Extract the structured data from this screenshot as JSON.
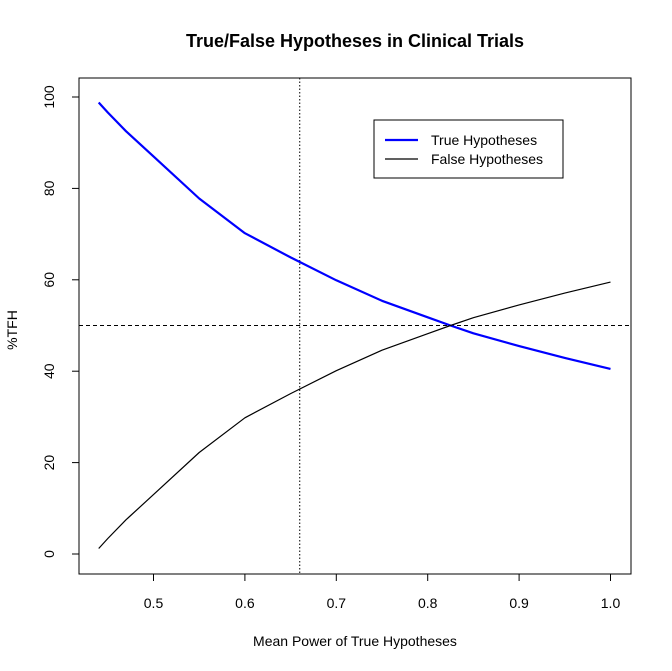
{
  "chart_data": {
    "type": "line",
    "title": "True/False Hypotheses in Clinical Trials",
    "xlabel": "Mean Power of True Hypotheses",
    "ylabel": "%TFH",
    "xlim": [
      0.44,
      1.0
    ],
    "ylim": [
      0,
      100
    ],
    "x_ticks": [
      "0.5",
      "0.6",
      "0.7",
      "0.8",
      "0.9",
      "1.0"
    ],
    "y_ticks": [
      "0",
      "20",
      "40",
      "60",
      "80",
      "100"
    ],
    "grid": false,
    "legend_position": "top-right",
    "colors": {
      "true_series": "#0000ff",
      "false_series": "#000000",
      "reference_lines": "#000000"
    },
    "x": [
      0.44,
      0.45,
      0.47,
      0.5,
      0.55,
      0.6,
      0.65,
      0.7,
      0.75,
      0.8,
      0.825,
      0.85,
      0.9,
      0.95,
      1.0
    ],
    "series": [
      {
        "name": "True Hypotheses",
        "values": [
          98.8,
          96.6,
          92.5,
          87.0,
          77.8,
          70.2,
          64.9,
          59.9,
          55.4,
          51.8,
          50.0,
          48.3,
          45.5,
          42.9,
          40.5
        ]
      },
      {
        "name": "False Hypotheses",
        "values": [
          1.2,
          3.4,
          7.5,
          13.0,
          22.2,
          29.8,
          35.1,
          40.1,
          44.6,
          48.2,
          50.0,
          51.7,
          54.5,
          57.1,
          59.5
        ]
      }
    ],
    "reference_lines": {
      "vertical_x": 0.66,
      "horizontal_y": 50
    }
  }
}
